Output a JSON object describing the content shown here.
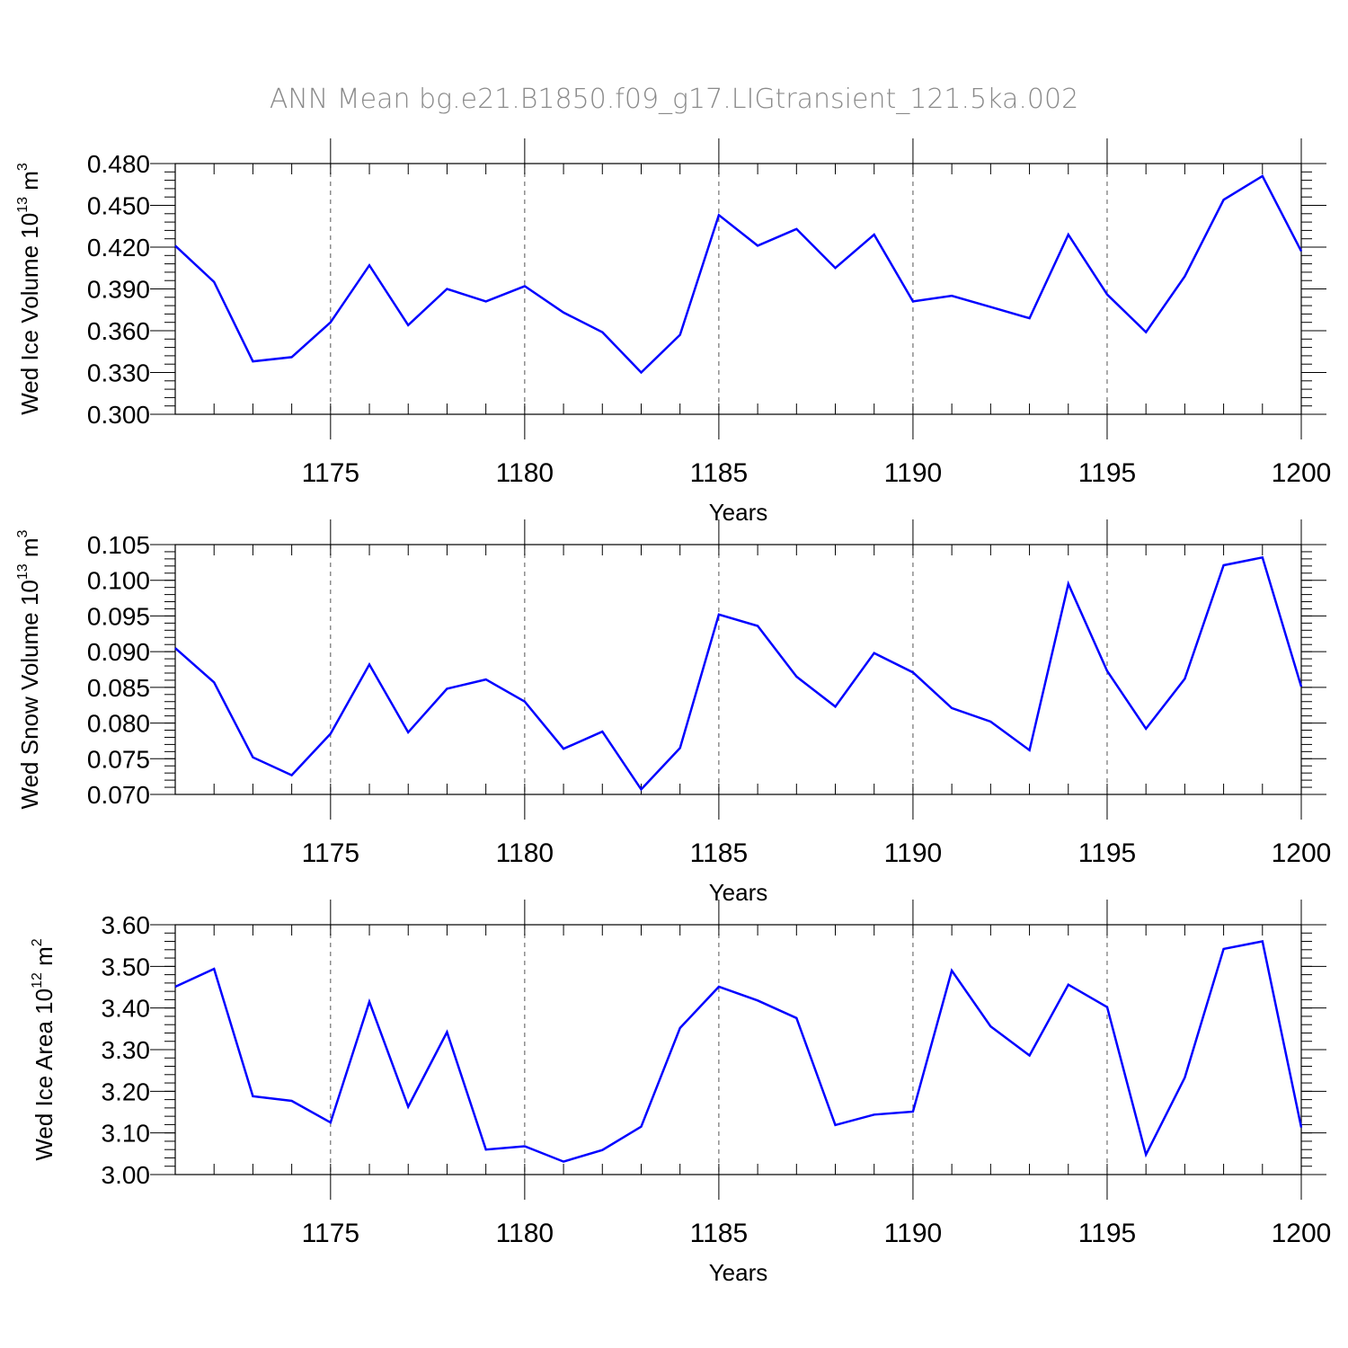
{
  "title": "ANN Mean bg.e21.B1850.f09_g17.LIGtransient_121.5ka.002",
  "chart_data": [
    {
      "type": "line",
      "ylabel": {
        "prefix": "Wed Ice Volume 10",
        "exp": "13",
        "unit": " m",
        "unit_exp": "3"
      },
      "xlabel": "Years",
      "xlim": [
        1171,
        1200
      ],
      "ylim": [
        0.3,
        0.48
      ],
      "x_ticks": [
        "1175",
        "1180",
        "1185",
        "1190",
        "1195",
        "1200"
      ],
      "x_tick_values": [
        1175,
        1180,
        1185,
        1190,
        1195,
        1200
      ],
      "y_ticks": [
        "0.300",
        "0.330",
        "0.360",
        "0.390",
        "0.420",
        "0.450",
        "0.480"
      ],
      "y_tick_values": [
        0.3,
        0.33,
        0.36,
        0.39,
        0.42,
        0.45,
        0.48
      ],
      "y_minor_step": 0.006,
      "color": "#0000ff",
      "grid": "vertical dashed at major x ticks",
      "x": [
        1171,
        1172,
        1173,
        1174,
        1175,
        1176,
        1177,
        1178,
        1179,
        1180,
        1181,
        1182,
        1183,
        1184,
        1185,
        1186,
        1187,
        1188,
        1189,
        1190,
        1191,
        1192,
        1193,
        1194,
        1195,
        1196,
        1197,
        1198,
        1199,
        1200
      ],
      "values": [
        0.421,
        0.395,
        0.338,
        0.341,
        0.366,
        0.407,
        0.364,
        0.39,
        0.381,
        0.392,
        0.373,
        0.359,
        0.33,
        0.357,
        0.443,
        0.421,
        0.433,
        0.405,
        0.429,
        0.381,
        0.385,
        0.377,
        0.369,
        0.429,
        0.386,
        0.359,
        0.399,
        0.454,
        0.471,
        0.417
      ]
    },
    {
      "type": "line",
      "ylabel": {
        "prefix": "Wed Snow Volume 10",
        "exp": "13",
        "unit": " m",
        "unit_exp": "3"
      },
      "xlabel": "Years",
      "xlim": [
        1171,
        1200
      ],
      "ylim": [
        0.07,
        0.105
      ],
      "x_ticks": [
        "1175",
        "1180",
        "1185",
        "1190",
        "1195",
        "1200"
      ],
      "x_tick_values": [
        1175,
        1180,
        1185,
        1190,
        1195,
        1200
      ],
      "y_ticks": [
        "0.070",
        "0.075",
        "0.080",
        "0.085",
        "0.090",
        "0.095",
        "0.100",
        "0.105"
      ],
      "y_tick_values": [
        0.07,
        0.075,
        0.08,
        0.085,
        0.09,
        0.095,
        0.1,
        0.105
      ],
      "y_minor_step": 0.001,
      "color": "#0000ff",
      "grid": "vertical dashed at major x ticks",
      "x": [
        1171,
        1172,
        1173,
        1174,
        1175,
        1176,
        1177,
        1178,
        1179,
        1180,
        1181,
        1182,
        1183,
        1184,
        1185,
        1186,
        1187,
        1188,
        1189,
        1190,
        1191,
        1192,
        1193,
        1194,
        1195,
        1196,
        1197,
        1198,
        1199,
        1200
      ],
      "values": [
        0.0905,
        0.0857,
        0.0752,
        0.0727,
        0.0785,
        0.0882,
        0.0787,
        0.0848,
        0.0861,
        0.083,
        0.0764,
        0.0788,
        0.0707,
        0.0765,
        0.0952,
        0.0936,
        0.0865,
        0.0823,
        0.0898,
        0.0871,
        0.0821,
        0.0802,
        0.0762,
        0.0995,
        0.0873,
        0.0792,
        0.0862,
        0.1021,
        0.1032,
        0.0851
      ]
    },
    {
      "type": "line",
      "ylabel": {
        "prefix": "Wed Ice Area 10",
        "exp": "12",
        "unit": " m",
        "unit_exp": "2"
      },
      "xlabel": "Years",
      "xlim": [
        1171,
        1200
      ],
      "ylim": [
        3.0,
        3.6
      ],
      "x_ticks": [
        "1175",
        "1180",
        "1185",
        "1190",
        "1195",
        "1200"
      ],
      "x_tick_values": [
        1175,
        1180,
        1185,
        1190,
        1195,
        1200
      ],
      "y_ticks": [
        "3.00",
        "3.10",
        "3.20",
        "3.30",
        "3.40",
        "3.50",
        "3.60"
      ],
      "y_tick_values": [
        3.0,
        3.1,
        3.2,
        3.3,
        3.4,
        3.5,
        3.6
      ],
      "y_minor_step": 0.02,
      "color": "#0000ff",
      "grid": "vertical dashed at major x ticks",
      "x": [
        1171,
        1172,
        1173,
        1174,
        1175,
        1176,
        1177,
        1178,
        1179,
        1180,
        1181,
        1182,
        1183,
        1184,
        1185,
        1186,
        1187,
        1188,
        1189,
        1190,
        1191,
        1192,
        1193,
        1194,
        1195,
        1196,
        1197,
        1198,
        1199,
        1200
      ],
      "values": [
        3.451,
        3.494,
        3.188,
        3.177,
        3.125,
        3.415,
        3.163,
        3.342,
        3.06,
        3.068,
        3.031,
        3.059,
        3.115,
        3.352,
        3.451,
        3.418,
        3.376,
        3.119,
        3.144,
        3.151,
        3.49,
        3.356,
        3.286,
        3.456,
        3.402,
        3.048,
        3.233,
        3.542,
        3.56,
        3.113
      ]
    }
  ]
}
